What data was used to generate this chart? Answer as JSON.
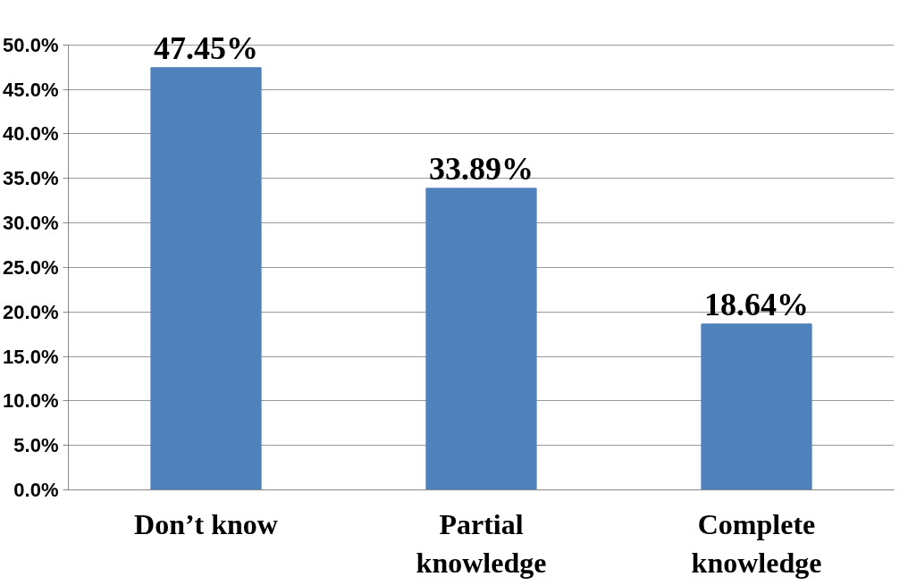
{
  "chart_data": {
    "type": "bar",
    "categories": [
      "Don’t know",
      "Partial knowledge",
      "Complete knowledge"
    ],
    "values": [
      47.45,
      33.89,
      18.64
    ],
    "color": "#4f81bd",
    "value_labels": [
      "47.45%",
      "33.89%",
      "18.64%"
    ],
    "ylim": [
      0,
      50
    ],
    "yticks": [
      {
        "value": 0,
        "label": "0.0%"
      },
      {
        "value": 5,
        "label": "5.0%"
      },
      {
        "value": 10,
        "label": "10.0%"
      },
      {
        "value": 15,
        "label": "15.0%"
      },
      {
        "value": 20,
        "label": "20.0%"
      },
      {
        "value": 25,
        "label": "25.0%"
      },
      {
        "value": 30,
        "label": "30.0%"
      },
      {
        "value": 35,
        "label": "35.0%"
      },
      {
        "value": 40,
        "label": "40.0%"
      },
      {
        "value": 45,
        "label": "45.0%"
      },
      {
        "value": 50,
        "label": "50.0%"
      }
    ],
    "grid": "y"
  }
}
